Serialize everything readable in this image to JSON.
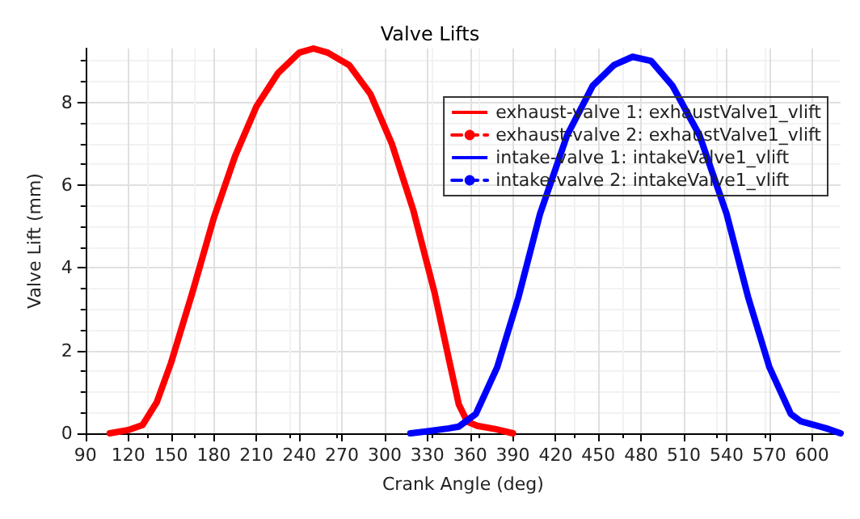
{
  "chart_data": {
    "type": "line",
    "title": "Valve Lifts",
    "xlabel": "Crank Angle (deg)",
    "ylabel": "Valve Lift (mm)",
    "xlim": [
      90,
      620
    ],
    "xticks": [
      90,
      120,
      150,
      180,
      210,
      240,
      270,
      300,
      330,
      360,
      390,
      420,
      450,
      480,
      510,
      540,
      570,
      600
    ],
    "ylim": [
      0,
      9.3
    ],
    "yticks": [
      0,
      2,
      4,
      6,
      8
    ],
    "grid": true,
    "legend": "top right",
    "line_style": "solid",
    "marker": "none",
    "series": [
      {
        "name": "exhaust-valve 1: exhaustValve1_vlift",
        "color": "#ff0000",
        "x": [
          107,
          120,
          130,
          140,
          150,
          165,
          180,
          195,
          210,
          225,
          240,
          250,
          260,
          275,
          290,
          305,
          320,
          335,
          345,
          352,
          358,
          365,
          378,
          390
        ],
        "values": [
          0,
          0.08,
          0.2,
          0.75,
          1.7,
          3.4,
          5.2,
          6.7,
          7.9,
          8.7,
          9.2,
          9.3,
          9.2,
          8.9,
          8.2,
          7.0,
          5.4,
          3.4,
          1.8,
          0.7,
          0.28,
          0.18,
          0.1,
          0
        ]
      },
      {
        "name": "exhaust-valve 2: exhaustValve1_vlift",
        "color": "#ff0000",
        "line_style": "dashed",
        "marker": "circle"
      },
      {
        "name": "intake-valve 1: intakeValve1_vlift",
        "color": "#0000ff",
        "x": [
          318,
          330,
          345,
          352,
          364,
          379,
          394,
          409,
          428,
          446,
          461,
          474,
          487,
          502,
          521,
          540,
          555,
          570,
          585,
          592,
          610,
          620
        ],
        "values": [
          0,
          0.05,
          0.12,
          0.16,
          0.47,
          1.6,
          3.3,
          5.3,
          7.2,
          8.4,
          8.9,
          9.1,
          9.0,
          8.4,
          7.2,
          5.3,
          3.3,
          1.6,
          0.47,
          0.29,
          0.12,
          0
        ]
      },
      {
        "name": "intake-valve 2: intakeValve1_vlift",
        "color": "#0000ff",
        "line_style": "dashed",
        "marker": "circle"
      }
    ]
  }
}
